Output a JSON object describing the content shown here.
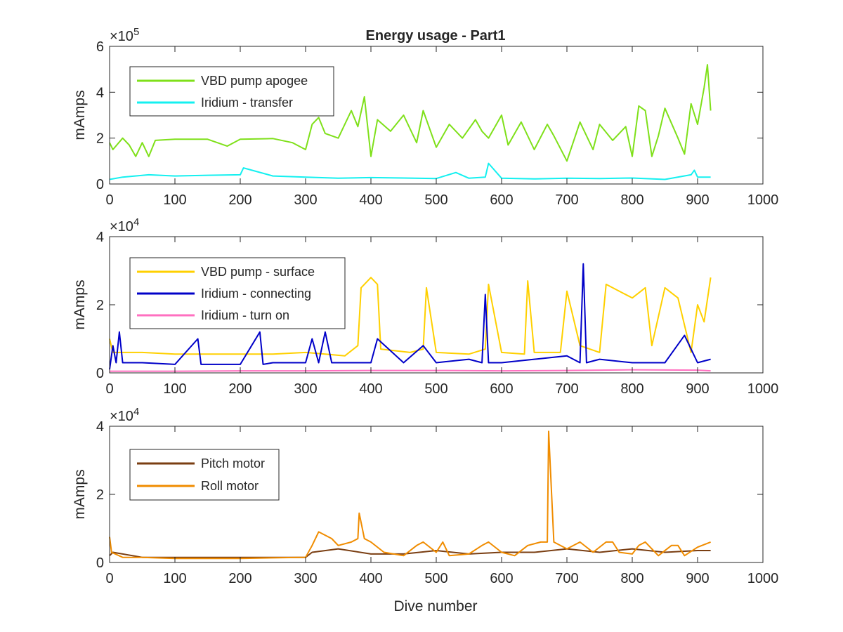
{
  "figure": {
    "title": "Energy usage - Part1",
    "xlabel": "Dive number"
  },
  "colors": {
    "axis": "#262626",
    "vbd_apogee": "#7fe01a",
    "iridium_transfer": "#14f0f0",
    "vbd_surface": "#ffd000",
    "iridium_connecting": "#0000c8",
    "iridium_turnon": "#ff70c0",
    "pitch": "#7a3e12",
    "roll": "#f08c00"
  },
  "chart_data": [
    {
      "type": "line",
      "title": "Energy usage - Part1",
      "xlabel": "",
      "ylabel": "mAmps",
      "xlim": [
        0,
        1000
      ],
      "ylim": [
        0,
        600000
      ],
      "xticks": [
        "0",
        "100",
        "200",
        "300",
        "400",
        "500",
        "600",
        "700",
        "800",
        "900",
        "1000"
      ],
      "yticks": [
        "0",
        "2",
        "4",
        "6"
      ],
      "exponent_label": "×10",
      "exponent_power": "5",
      "legend_position": "top-left",
      "grid": false,
      "series": [
        {
          "name": "VBD pump apogee",
          "color_key": "vbd_apogee",
          "x": [
            0,
            5,
            20,
            30,
            40,
            50,
            60,
            70,
            100,
            150,
            180,
            200,
            250,
            280,
            300,
            310,
            320,
            330,
            350,
            370,
            380,
            390,
            400,
            410,
            430,
            450,
            470,
            480,
            500,
            520,
            540,
            560,
            570,
            580,
            600,
            610,
            630,
            650,
            670,
            680,
            700,
            720,
            740,
            750,
            770,
            790,
            800,
            810,
            820,
            830,
            840,
            850,
            870,
            880,
            890,
            900,
            910,
            915,
            920
          ],
          "y": [
            180000,
            150000,
            200000,
            170000,
            120000,
            180000,
            120000,
            190000,
            195000,
            195000,
            165000,
            195000,
            198000,
            180000,
            150000,
            260000,
            290000,
            220000,
            200000,
            320000,
            250000,
            380000,
            120000,
            280000,
            230000,
            300000,
            180000,
            320000,
            160000,
            260000,
            200000,
            280000,
            230000,
            200000,
            300000,
            170000,
            270000,
            150000,
            260000,
            210000,
            100000,
            270000,
            150000,
            260000,
            190000,
            250000,
            120000,
            340000,
            320000,
            120000,
            210000,
            330000,
            200000,
            130000,
            350000,
            260000,
            420000,
            520000,
            320000
          ]
        },
        {
          "name": "Iridium - transfer",
          "color_key": "iridium_transfer",
          "x": [
            0,
            20,
            60,
            100,
            150,
            200,
            205,
            250,
            300,
            350,
            400,
            450,
            500,
            530,
            550,
            575,
            580,
            600,
            650,
            700,
            750,
            800,
            850,
            890,
            895,
            900,
            920
          ],
          "y": [
            20000,
            30000,
            40000,
            35000,
            38000,
            40000,
            70000,
            35000,
            30000,
            25000,
            28000,
            26000,
            24000,
            50000,
            25000,
            30000,
            90000,
            25000,
            22000,
            25000,
            24000,
            26000,
            20000,
            40000,
            60000,
            30000,
            30000
          ]
        }
      ]
    },
    {
      "type": "line",
      "title": "",
      "xlabel": "",
      "ylabel": "mAmps",
      "xlim": [
        0,
        1000
      ],
      "ylim": [
        0,
        40000
      ],
      "xticks": [
        "0",
        "100",
        "200",
        "300",
        "400",
        "500",
        "600",
        "700",
        "800",
        "900",
        "1000"
      ],
      "yticks": [
        "0",
        "2",
        "4"
      ],
      "exponent_label": "×10",
      "exponent_power": "4",
      "legend_position": "top-left",
      "grid": false,
      "series": [
        {
          "name": "VBD pump - surface",
          "color_key": "vbd_surface",
          "x": [
            0,
            5,
            50,
            100,
            150,
            200,
            250,
            300,
            330,
            360,
            380,
            385,
            400,
            410,
            415,
            460,
            480,
            485,
            500,
            550,
            575,
            580,
            600,
            635,
            640,
            650,
            690,
            700,
            720,
            750,
            760,
            800,
            820,
            830,
            850,
            870,
            890,
            900,
            910,
            920
          ],
          "y": [
            10000,
            6000,
            6000,
            5500,
            5500,
            5500,
            5500,
            6000,
            5500,
            5000,
            8000,
            25000,
            28000,
            26000,
            7000,
            6000,
            7000,
            25000,
            6000,
            5500,
            7000,
            26000,
            6000,
            5500,
            27000,
            6000,
            6000,
            24000,
            8000,
            6000,
            26000,
            22000,
            25000,
            8000,
            25000,
            22000,
            6000,
            20000,
            15000,
            28000
          ]
        },
        {
          "name": "Iridium - connecting",
          "color_key": "iridium_connecting",
          "x": [
            0,
            5,
            10,
            15,
            20,
            50,
            100,
            135,
            140,
            200,
            230,
            235,
            250,
            300,
            310,
            320,
            330,
            340,
            360,
            400,
            410,
            450,
            480,
            500,
            550,
            570,
            575,
            580,
            600,
            650,
            700,
            720,
            725,
            730,
            750,
            800,
            850,
            880,
            900,
            920
          ],
          "y": [
            1000,
            8000,
            3000,
            12000,
            3000,
            3000,
            2500,
            10000,
            2500,
            2500,
            12000,
            2500,
            3000,
            3000,
            10000,
            3000,
            12000,
            3000,
            3000,
            3000,
            10000,
            3000,
            8000,
            3000,
            4000,
            3000,
            23000,
            3000,
            3000,
            4000,
            5000,
            3000,
            32000,
            3000,
            4000,
            3000,
            3000,
            11000,
            3000,
            4000
          ]
        },
        {
          "name": "Iridium - turn on",
          "color_key": "iridium_turnon",
          "x": [
            0,
            100,
            200,
            300,
            400,
            500,
            600,
            700,
            800,
            900,
            920
          ],
          "y": [
            500,
            500,
            600,
            600,
            700,
            700,
            600,
            700,
            900,
            800,
            600
          ]
        }
      ]
    },
    {
      "type": "line",
      "title": "",
      "xlabel": "Dive number",
      "ylabel": "mAmps",
      "xlim": [
        0,
        1000
      ],
      "ylim": [
        0,
        40000
      ],
      "xticks": [
        "0",
        "100",
        "200",
        "300",
        "400",
        "500",
        "600",
        "700",
        "800",
        "900",
        "1000"
      ],
      "yticks": [
        "0",
        "2",
        "4"
      ],
      "exponent_label": "×10",
      "exponent_power": "4",
      "legend_position": "top-left",
      "grid": false,
      "series": [
        {
          "name": "Pitch motor",
          "color_key": "pitch",
          "x": [
            0,
            5,
            50,
            100,
            200,
            300,
            310,
            350,
            400,
            450,
            500,
            550,
            600,
            650,
            700,
            750,
            800,
            850,
            900,
            920
          ],
          "y": [
            2000,
            3000,
            1500,
            1500,
            1500,
            1500,
            3000,
            4000,
            2500,
            2500,
            3500,
            2500,
            3000,
            3000,
            4000,
            3000,
            4000,
            3000,
            3500,
            3500
          ]
        },
        {
          "name": "Roll motor",
          "color_key": "roll",
          "x": [
            0,
            3,
            20,
            50,
            100,
            200,
            290,
            300,
            310,
            320,
            340,
            350,
            370,
            380,
            382,
            390,
            400,
            420,
            450,
            470,
            480,
            500,
            510,
            520,
            550,
            570,
            580,
            600,
            620,
            640,
            660,
            670,
            672,
            680,
            700,
            720,
            740,
            760,
            770,
            780,
            800,
            810,
            820,
            840,
            860,
            870,
            880,
            900,
            920
          ],
          "y": [
            7500,
            3000,
            1500,
            1500,
            1200,
            1200,
            1500,
            1500,
            5000,
            9000,
            7000,
            5000,
            6000,
            7000,
            14500,
            7000,
            6000,
            3000,
            2000,
            5000,
            6000,
            3000,
            6000,
            2000,
            2500,
            5000,
            6000,
            3000,
            2000,
            5000,
            6000,
            6000,
            38500,
            6000,
            4000,
            6000,
            3000,
            6000,
            6000,
            3000,
            2500,
            5000,
            6000,
            2000,
            5000,
            5000,
            2000,
            4500,
            6000
          ]
        }
      ]
    }
  ]
}
